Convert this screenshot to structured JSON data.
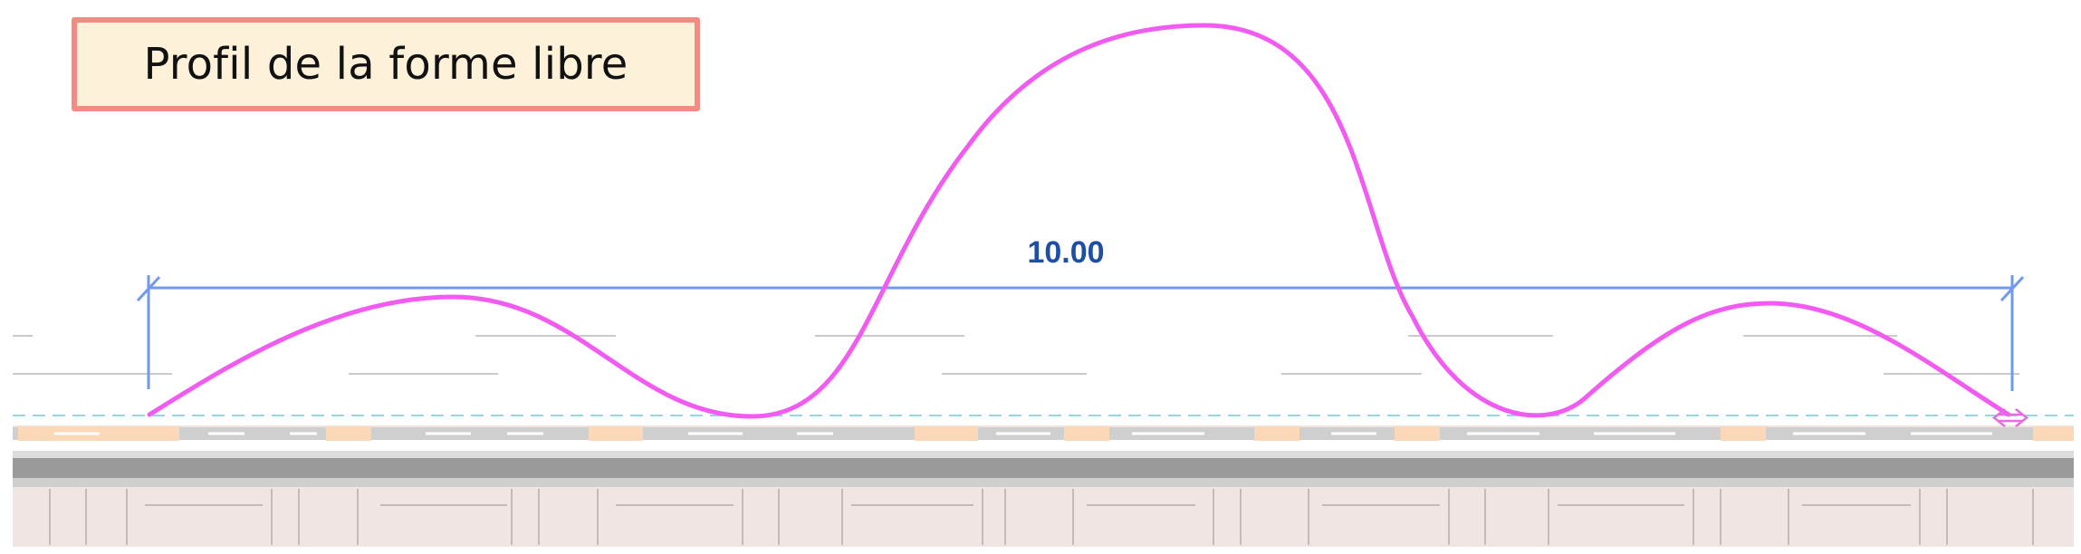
{
  "title": "Profil de la forme libre",
  "dimension": {
    "value": "10.00"
  },
  "colors": {
    "curve": "#f15bf1",
    "dimension_line": "#7199f2",
    "dimension_text": "#1e4fa6",
    "title_border": "#f48a82",
    "title_fill": "#fdf1d9",
    "reference_dashes": "#8fd6e6",
    "wall_band": "#e9e0dd"
  },
  "icons": {
    "curve_end_handle": "double-arrow-icon"
  }
}
